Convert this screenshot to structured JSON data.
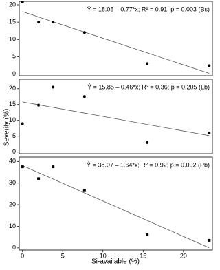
{
  "chart_data": [
    {
      "type": "scatter",
      "annotation": "Ŷ = 18.05 – 0.77*x; R² = 0.91; p = 0.003   (Bs)",
      "fit": {
        "intercept": 18.05,
        "slope": -0.77
      },
      "x": [
        0,
        2,
        3.8,
        7.7,
        15.5,
        23.2
      ],
      "values": [
        20.8,
        15,
        15,
        12,
        3,
        2.4
      ],
      "color": "#000000",
      "marker": "circle",
      "xlim": [
        -0.4,
        23.6
      ],
      "ylim": [
        -0.5,
        21
      ],
      "yticks": [
        0,
        5,
        10,
        15,
        20
      ]
    },
    {
      "type": "scatter",
      "annotation": "Ŷ = 15.85 – 0.46*x; R² = 0.36; p = 0.205   (Lb)",
      "fit": {
        "intercept": 15.85,
        "slope": -0.46
      },
      "ylabel": "Severity (%)",
      "x": [
        0,
        2,
        3.8,
        7.7,
        15.5,
        23.2
      ],
      "values": [
        9,
        14.8,
        20.5,
        17.5,
        3,
        6
      ],
      "color": "#000000",
      "marker": "circle",
      "xlim": [
        -0.4,
        23.6
      ],
      "ylim": [
        -0.5,
        23
      ],
      "yticks": [
        0,
        5,
        10,
        15,
        20
      ]
    },
    {
      "type": "scatter",
      "annotation": "Ŷ = 38.07 – 1.64*x; R² = 0.92; p = 0.002   (Pb)",
      "fit": {
        "intercept": 38.07,
        "slope": -1.64
      },
      "xlabel": "Si-available (%)",
      "x": [
        0,
        2,
        3.8,
        7.7,
        15.5,
        23.2
      ],
      "values": [
        37.5,
        32,
        37.5,
        26.5,
        6,
        3.5
      ],
      "color": "#000000",
      "marker": "square",
      "xlim": [
        -0.4,
        23.6
      ],
      "ylim": [
        -1,
        42
      ],
      "yticks": [
        0,
        10,
        20,
        30,
        40
      ],
      "xticks": [
        0,
        5,
        10,
        15,
        20
      ]
    }
  ]
}
